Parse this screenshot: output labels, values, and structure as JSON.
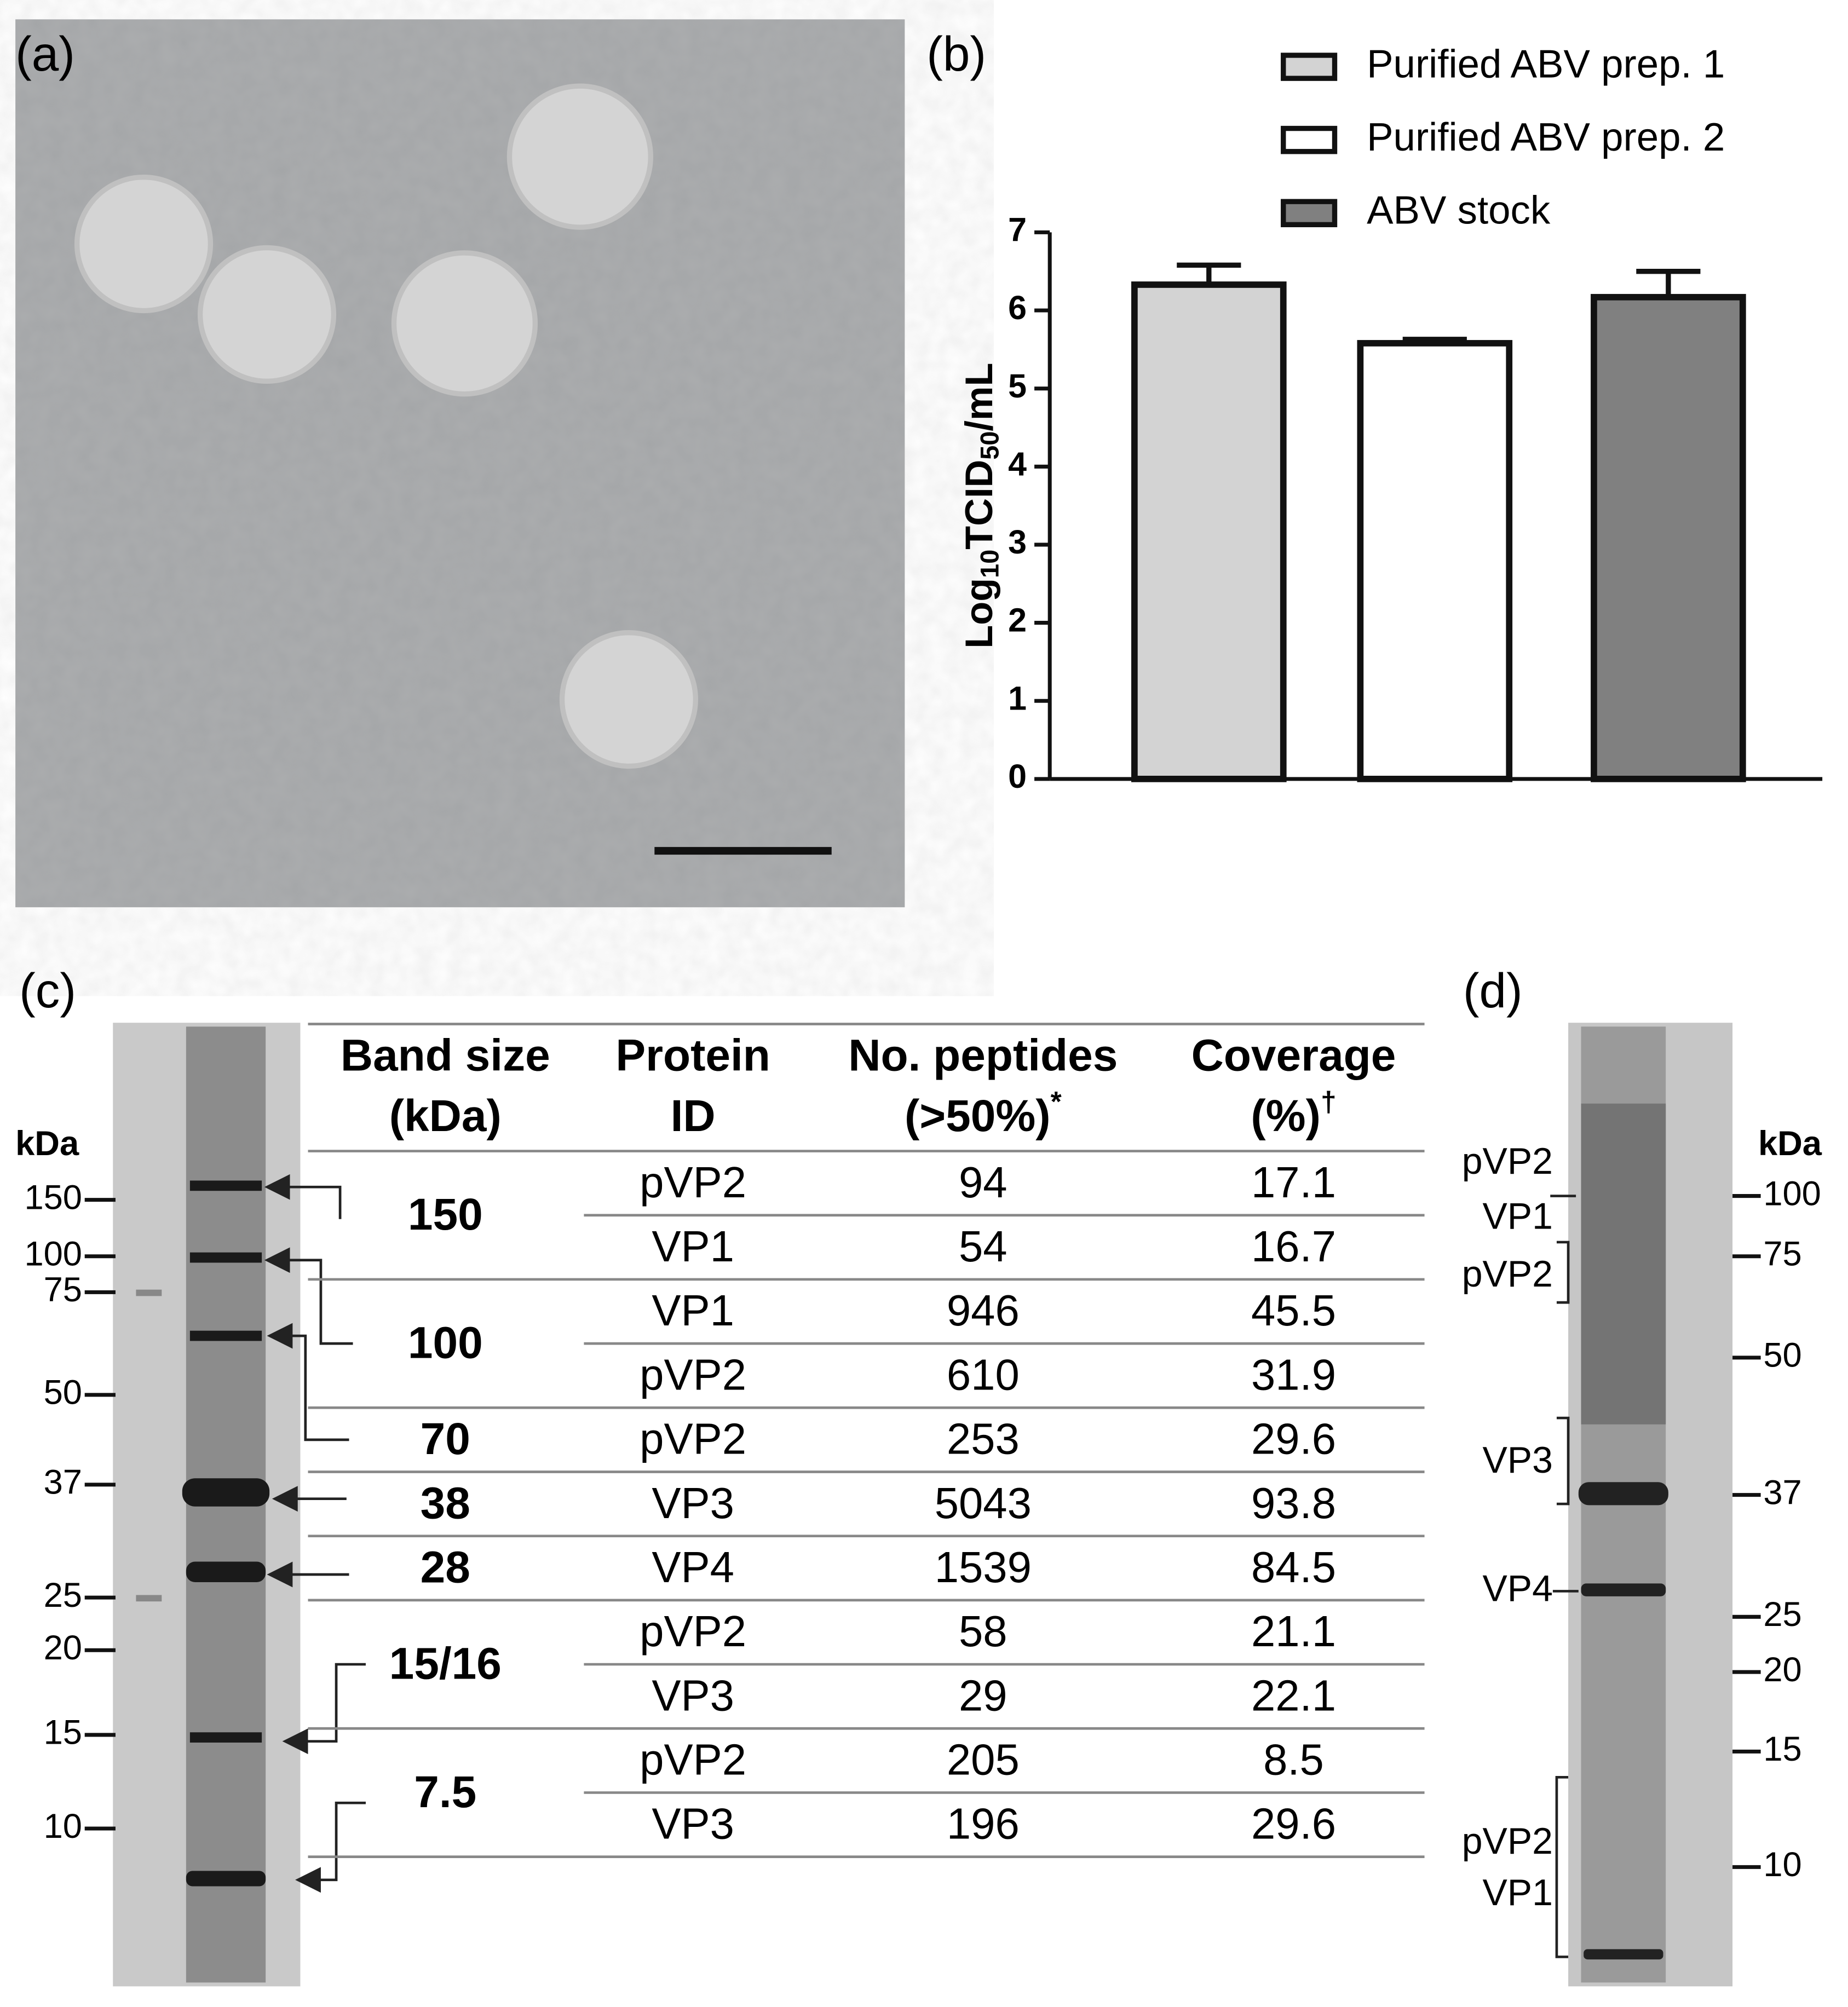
{
  "panels": {
    "a": "(a)",
    "b": "(b)",
    "c": "(c)",
    "d": "(d)"
  },
  "chart_data": {
    "type": "bar",
    "ylabel_parts": [
      "Log",
      "10",
      "TCID",
      "50",
      "/mL"
    ],
    "series": [
      {
        "name": "Purified ABV prep. 1",
        "color": "#d3d3d3",
        "values": [
          6.33
        ],
        "errors": [
          0.25
        ]
      },
      {
        "name": "Purified ABV prep. 2",
        "color": "#ffffff",
        "values": [
          5.58
        ],
        "errors": [
          0.05
        ]
      },
      {
        "name": "ABV stock",
        "color": "#808080",
        "values": [
          6.17
        ],
        "errors": [
          0.33
        ]
      }
    ],
    "ylim": [
      0,
      7
    ],
    "yticks": [
      0,
      1,
      2,
      3,
      4,
      5,
      6,
      7
    ],
    "legend": "upper right"
  },
  "gel_c": {
    "unit": "kDa",
    "markers": [
      "150",
      "100",
      "75",
      "50",
      "37",
      "25",
      "20",
      "15",
      "10"
    ]
  },
  "table": {
    "header": [
      [
        "Band size",
        "(kDa)",
        ""
      ],
      [
        "Protein",
        "ID",
        ""
      ],
      [
        "No. peptides",
        "(>50%)",
        "*"
      ],
      [
        "Coverage",
        "(%)",
        "†"
      ]
    ],
    "groups": [
      {
        "band": "150",
        "rows": [
          [
            "pVP2",
            "94",
            "17.1"
          ],
          [
            "VP1",
            "54",
            "16.7"
          ]
        ]
      },
      {
        "band": "100",
        "rows": [
          [
            "VP1",
            "946",
            "45.5"
          ],
          [
            "pVP2",
            "610",
            "31.9"
          ]
        ]
      },
      {
        "band": "70",
        "rows": [
          [
            "pVP2",
            "253",
            "29.6"
          ]
        ]
      },
      {
        "band": "38",
        "rows": [
          [
            "VP3",
            "5043",
            "93.8"
          ]
        ]
      },
      {
        "band": "28",
        "rows": [
          [
            "VP4",
            "1539",
            "84.5"
          ]
        ]
      },
      {
        "band": "15/16",
        "rows": [
          [
            "pVP2",
            "58",
            "21.1"
          ],
          [
            "VP3",
            "29",
            "22.1"
          ]
        ]
      },
      {
        "band": "7.5",
        "rows": [
          [
            "pVP2",
            "205",
            "8.5"
          ],
          [
            "VP3",
            "196",
            "29.6"
          ]
        ]
      }
    ]
  },
  "gel_d": {
    "unit": "kDa",
    "markers": [
      "100",
      "75",
      "50",
      "37",
      "25",
      "20",
      "15",
      "10"
    ],
    "labels": [
      [
        "pVP2",
        "VP1"
      ],
      [
        "pVP2"
      ],
      [
        "VP3"
      ],
      [
        "VP4"
      ],
      [
        "pVP2",
        "VP1"
      ]
    ]
  }
}
